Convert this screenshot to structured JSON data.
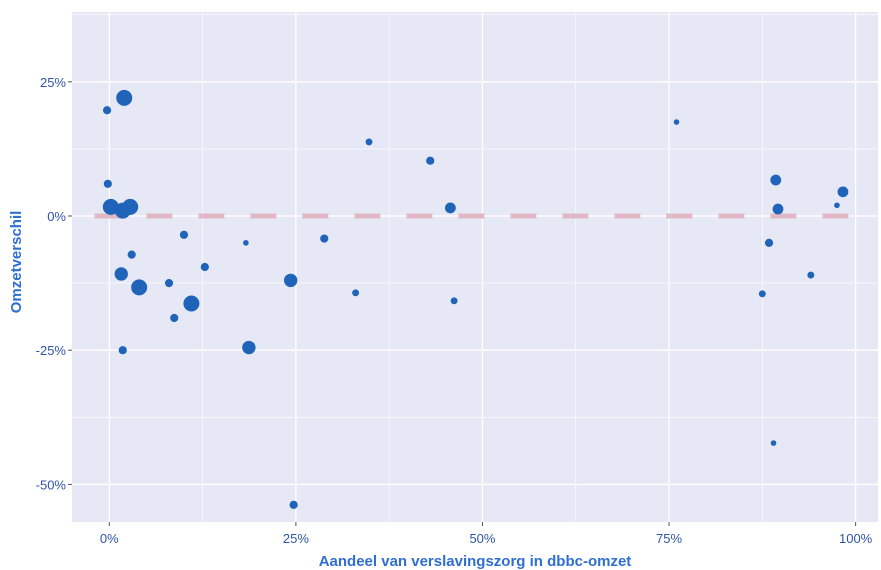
{
  "chart_data": {
    "type": "scatter",
    "xlabel": "Aandeel van verslavingszorg in dbbc-omzet",
    "ylabel": "Omzetverschil",
    "xlim": [
      -0.05,
      1.03
    ],
    "ylim": [
      -0.57,
      0.38
    ],
    "x_ticks": [
      {
        "value": 0,
        "label": "0%"
      },
      {
        "value": 0.25,
        "label": "25%"
      },
      {
        "value": 0.5,
        "label": "50%"
      },
      {
        "value": 0.75,
        "label": "75%"
      },
      {
        "value": 1.0,
        "label": "100%"
      }
    ],
    "y_ticks": [
      {
        "value": 0.25,
        "label": "25%"
      },
      {
        "value": 0,
        "label": "0%"
      },
      {
        "value": -0.25,
        "label": "-25%"
      },
      {
        "value": -0.5,
        "label": "-50%"
      }
    ],
    "grid": true,
    "reference_line": {
      "y": 0,
      "style": "dashed",
      "color": "#e2b8c6"
    },
    "colors": {
      "panel": "#e6e8f6",
      "grid": "#ffffff",
      "point": "#1f64b8"
    },
    "points": [
      {
        "x": -0.003,
        "y": 0.197,
        "size": 2
      },
      {
        "x": -0.002,
        "y": 0.06,
        "size": 2
      },
      {
        "x": 0.002,
        "y": 0.017,
        "size": 5
      },
      {
        "x": 0.02,
        "y": 0.22,
        "size": 5
      },
      {
        "x": 0.018,
        "y": 0.01,
        "size": 5
      },
      {
        "x": 0.028,
        "y": 0.017,
        "size": 5
      },
      {
        "x": 0.016,
        "y": -0.108,
        "size": 4
      },
      {
        "x": 0.03,
        "y": -0.072,
        "size": 2
      },
      {
        "x": 0.04,
        "y": -0.133,
        "size": 5
      },
      {
        "x": 0.018,
        "y": -0.25,
        "size": 2
      },
      {
        "x": 0.08,
        "y": -0.125,
        "size": 2
      },
      {
        "x": 0.087,
        "y": -0.19,
        "size": 2
      },
      {
        "x": 0.1,
        "y": -0.035,
        "size": 2
      },
      {
        "x": 0.11,
        "y": -0.163,
        "size": 5
      },
      {
        "x": 0.128,
        "y": -0.095,
        "size": 2
      },
      {
        "x": 0.183,
        "y": -0.05,
        "size": 1
      },
      {
        "x": 0.187,
        "y": -0.245,
        "size": 4
      },
      {
        "x": 0.243,
        "y": -0.12,
        "size": 4
      },
      {
        "x": 0.247,
        "y": -0.538,
        "size": 2
      },
      {
        "x": 0.288,
        "y": -0.042,
        "size": 2
      },
      {
        "x": 0.33,
        "y": -0.143,
        "size": 1.5
      },
      {
        "x": 0.348,
        "y": 0.138,
        "size": 1.5
      },
      {
        "x": 0.43,
        "y": 0.103,
        "size": 2
      },
      {
        "x": 0.457,
        "y": 0.015,
        "size": 3
      },
      {
        "x": 0.462,
        "y": -0.158,
        "size": 1.5
      },
      {
        "x": 0.76,
        "y": 0.175,
        "size": 1
      },
      {
        "x": 0.875,
        "y": -0.145,
        "size": 1.5
      },
      {
        "x": 0.884,
        "y": -0.05,
        "size": 2
      },
      {
        "x": 0.893,
        "y": 0.067,
        "size": 3
      },
      {
        "x": 0.896,
        "y": 0.013,
        "size": 3
      },
      {
        "x": 0.89,
        "y": -0.423,
        "size": 1
      },
      {
        "x": 0.94,
        "y": -0.11,
        "size": 1.5
      },
      {
        "x": 0.975,
        "y": 0.02,
        "size": 1
      },
      {
        "x": 0.983,
        "y": 0.045,
        "size": 3
      }
    ]
  }
}
